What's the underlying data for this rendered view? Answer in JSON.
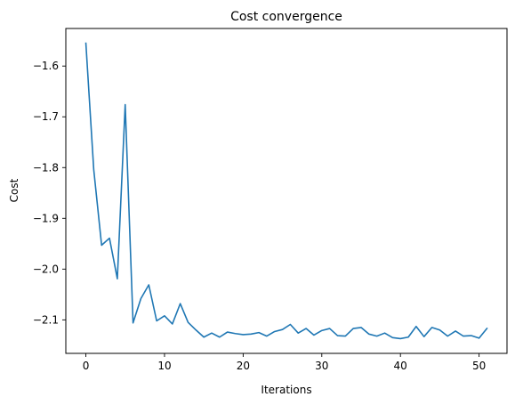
{
  "chart_data": {
    "type": "line",
    "title": "Cost convergence",
    "xlabel": "Iterations",
    "ylabel": "Cost",
    "xlim": [
      -2.55,
      53.55
    ],
    "ylim": [
      -2.166,
      -1.526
    ],
    "xticks": [
      0,
      10,
      20,
      30,
      40,
      50
    ],
    "xtick_labels": [
      "0",
      "10",
      "20",
      "30",
      "40",
      "50"
    ],
    "yticks": [
      -1.6,
      -1.7,
      -1.8,
      -1.9,
      -2.0,
      -2.1
    ],
    "ytick_labels": [
      "−1.6",
      "−1.7",
      "−1.8",
      "−1.9",
      "−2.0",
      "−2.1"
    ],
    "grid": false,
    "series": [
      {
        "color": "#1f77b4",
        "x": [
          0,
          1,
          2,
          3,
          4,
          5,
          6,
          7,
          8,
          9,
          10,
          11,
          12,
          13,
          14,
          15,
          16,
          17,
          18,
          19,
          20,
          21,
          22,
          23,
          24,
          25,
          26,
          27,
          28,
          29,
          30,
          31,
          32,
          33,
          34,
          35,
          36,
          37,
          38,
          39,
          40,
          41,
          42,
          43,
          44,
          45,
          46,
          47,
          48,
          49,
          50,
          51
        ],
        "y": [
          -1.555,
          -1.804,
          -1.953,
          -1.939,
          -2.019,
          -1.676,
          -2.106,
          -2.058,
          -2.031,
          -2.102,
          -2.092,
          -2.108,
          -2.068,
          -2.105,
          -2.12,
          -2.134,
          -2.126,
          -2.134,
          -2.124,
          -2.127,
          -2.129,
          -2.128,
          -2.125,
          -2.132,
          -2.123,
          -2.119,
          -2.109,
          -2.126,
          -2.117,
          -2.13,
          -2.121,
          -2.117,
          -2.131,
          -2.132,
          -2.117,
          -2.115,
          -2.128,
          -2.132,
          -2.126,
          -2.135,
          -2.137,
          -2.134,
          -2.113,
          -2.133,
          -2.115,
          -2.12,
          -2.132,
          -2.122,
          -2.132,
          -2.131,
          -2.136,
          -2.117
        ]
      }
    ]
  }
}
